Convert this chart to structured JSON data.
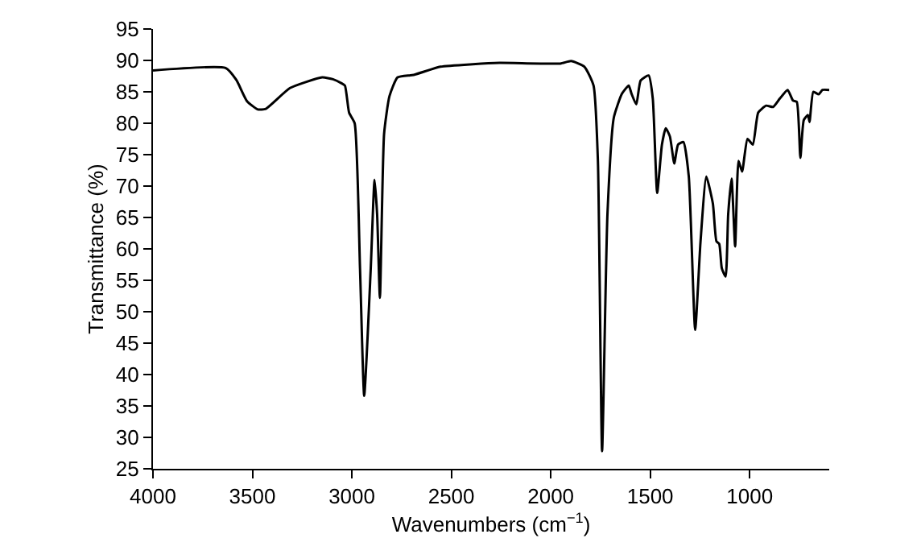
{
  "chart_data": {
    "type": "line",
    "xlabel": "Wavenumbers (cm$^{−1}$)",
    "ylabel": "Transmittance (%)",
    "xlim": [
      4000,
      600
    ],
    "ylim": [
      25,
      95
    ],
    "xticks": [
      4000,
      3500,
      3000,
      2500,
      2000,
      1500,
      1000
    ],
    "yticks": [
      25,
      30,
      35,
      40,
      45,
      50,
      55,
      60,
      65,
      70,
      75,
      80,
      85,
      90,
      95
    ],
    "line_style": "solid",
    "series": [
      {
        "color": "#000000",
        "x": [
          4000,
          3635,
          3581,
          3527,
          3473,
          3432,
          3311,
          3149,
          3095,
          3054,
          3035,
          3014,
          2986,
          2959,
          2938,
          2905,
          2886,
          2873,
          2859,
          2838,
          2811,
          2770,
          2689,
          2554,
          2392,
          2257,
          1952,
          1898,
          1831,
          1785,
          1763,
          1742,
          1715,
          1683,
          1642,
          1608,
          1594,
          1570,
          1548,
          1508,
          1487,
          1465,
          1441,
          1422,
          1401,
          1379,
          1360,
          1333,
          1306,
          1274,
          1247,
          1218,
          1185,
          1167,
          1153,
          1140,
          1121,
          1108,
          1091,
          1073,
          1056,
          1038,
          1011,
          984,
          957,
          917,
          882,
          849,
          809,
          782,
          763,
          745,
          728,
          707,
          699,
          680,
          653,
          634,
          600
        ],
        "values": [
          88.4,
          88.8,
          86.9,
          83.5,
          82.2,
          82.3,
          85.6,
          87.3,
          87.0,
          86.4,
          86.0,
          81.7,
          80.0,
          56.9,
          36.6,
          56.9,
          71.0,
          65.5,
          52.2,
          78.3,
          84.3,
          87.3,
          87.7,
          89.0,
          89.4,
          89.6,
          89.5,
          89.9,
          89.0,
          86.0,
          74.0,
          27.8,
          65.5,
          80.9,
          84.7,
          86.0,
          84.7,
          83.0,
          86.8,
          87.6,
          83.9,
          68.9,
          76.6,
          79.2,
          77.9,
          73.6,
          76.6,
          77.0,
          71.5,
          47.1,
          61.2,
          71.5,
          67.2,
          61.2,
          60.8,
          56.9,
          55.6,
          65.5,
          71.2,
          60.4,
          74.0,
          72.3,
          77.5,
          76.6,
          81.7,
          82.8,
          82.6,
          83.9,
          85.3,
          83.6,
          83.4,
          74.5,
          80.5,
          81.3,
          80.2,
          85.0,
          84.6,
          85.3,
          85.3
        ]
      }
    ]
  }
}
